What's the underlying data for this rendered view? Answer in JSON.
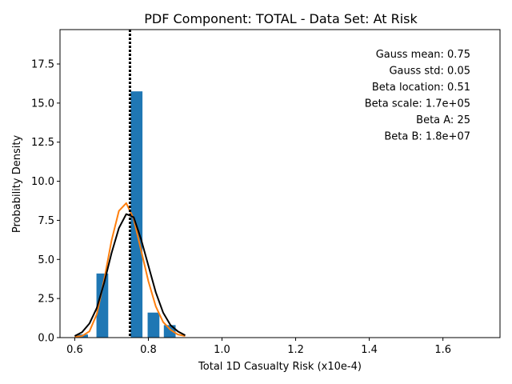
{
  "chart_data": {
    "type": "bar",
    "title": "PDF Component: TOTAL - Data Set: At Risk",
    "xlabel": "Total 1D Casualty Risk (x10e-4)",
    "ylabel": "Probability Density",
    "xlim": [
      0.56,
      1.755
    ],
    "ylim": [
      0,
      19.7
    ],
    "xticks": [
      0.6,
      0.8,
      1.0,
      1.2,
      1.4,
      1.6
    ],
    "xtick_labels": [
      "0.6",
      "0.8",
      "1.0",
      "1.2",
      "1.4",
      "1.6"
    ],
    "yticks": [
      0,
      2.5,
      5,
      7.5,
      10,
      12.5,
      15,
      17.5
    ],
    "ytick_labels": [
      "0.0",
      "2.5",
      "5.0",
      "7.5",
      "10.0",
      "12.5",
      "15.0",
      "17.5"
    ],
    "grid": false,
    "bar_color": "#1f77b4",
    "bars": [
      {
        "x_start": 0.604,
        "x_end": 0.636,
        "value": 0.2
      },
      {
        "x_start": 0.659,
        "x_end": 0.691,
        "value": 4.1
      },
      {
        "x_start": 0.752,
        "x_end": 0.784,
        "value": 15.75
      },
      {
        "x_start": 0.798,
        "x_end": 0.83,
        "value": 1.6
      },
      {
        "x_start": 0.842,
        "x_end": 0.874,
        "value": 0.8
      }
    ],
    "vertical_line": {
      "x": 0.75,
      "style": "dotted",
      "color": "#000000"
    },
    "series": [
      {
        "color": "#ff7f0e",
        "x": [
          0.6,
          0.62,
          0.64,
          0.66,
          0.68,
          0.7,
          0.72,
          0.74,
          0.76,
          0.78,
          0.8,
          0.82,
          0.84,
          0.86,
          0.88,
          0.9
        ],
        "y": [
          0.05,
          0.1,
          0.4,
          1.5,
          3.7,
          6.2,
          8.1,
          8.6,
          7.6,
          5.6,
          3.6,
          2.0,
          1.0,
          0.5,
          0.2,
          0.1
        ]
      },
      {
        "color": "#000000",
        "x": [
          0.6,
          0.62,
          0.64,
          0.66,
          0.68,
          0.7,
          0.72,
          0.74,
          0.76,
          0.78,
          0.8,
          0.82,
          0.84,
          0.86,
          0.88,
          0.9
        ],
        "y": [
          0.1,
          0.35,
          0.9,
          1.9,
          3.5,
          5.4,
          7.0,
          7.9,
          7.7,
          6.3,
          4.6,
          2.9,
          1.6,
          0.8,
          0.4,
          0.15
        ]
      }
    ],
    "annotations": [
      "Gauss mean: 0.75",
      "Gauss std: 0.05",
      "Beta location: 0.51",
      "Beta scale: 1.7e+05",
      "Beta A: 25",
      "Beta B: 1.8e+07"
    ]
  }
}
